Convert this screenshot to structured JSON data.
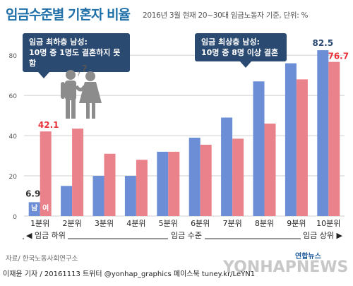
{
  "title": "임금수준별 기혼자 비율",
  "subtitle": "2016년 3월 현재 20~30대 임금노동자 기준, 단위: %",
  "callouts": {
    "low": {
      "line1": "임금 최하층 남성:",
      "line2": "10명 중 1명도 결혼하지 못함"
    },
    "high": {
      "line1": "임금 최상층 남성:",
      "line2": "10명 중 8명 이상 결혼"
    }
  },
  "range_labels": {
    "low": "◀ 임금 하위",
    "mid": "임금 수준",
    "high": "임금 상위 ▶"
  },
  "source": "자료/ 한국노동사회연구소",
  "credit": "이재윤 기자 / 20161113  트위터 @yonhap_graphics  페이스북 tuney.kr/LeYN1",
  "logo": "연합뉴스",
  "watermark": "YONHAPNEWS",
  "colors": {
    "male": "#6b8ed6",
    "female": "#e9828a",
    "female_label": "#e8333b",
    "title": "#1e6fa8"
  },
  "chart_data": {
    "type": "bar",
    "categories": [
      "1분위",
      "2분위",
      "3분위",
      "4분위",
      "5분위",
      "6분위",
      "7분위",
      "8분위",
      "9분위",
      "10분위"
    ],
    "series": [
      {
        "name": "남",
        "values": [
          6.9,
          15,
          20,
          20,
          32,
          39,
          49,
          67,
          76,
          82.5
        ]
      },
      {
        "name": "여",
        "values": [
          42.1,
          43.5,
          31,
          28,
          32,
          35.5,
          38.5,
          46,
          68,
          76.7
        ]
      }
    ],
    "data_labels": {
      "male_first": "6.9",
      "female_first": "42.1",
      "male_last": "82.5",
      "female_last": "76.7"
    },
    "ylim": [
      0,
      85
    ],
    "yticks": [
      0,
      20,
      40,
      60,
      80
    ],
    "grid": true,
    "legend_in_first_group": [
      "남",
      "여"
    ]
  }
}
